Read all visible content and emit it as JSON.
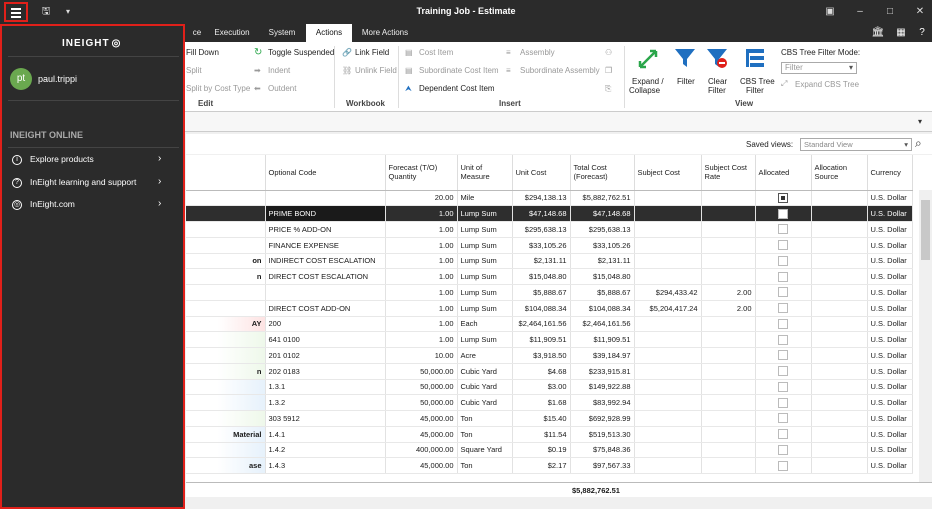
{
  "window": {
    "title": "Training Job - Estimate"
  },
  "tabs": [
    {
      "label": "ce"
    },
    {
      "label": "Execution"
    },
    {
      "label": "System"
    },
    {
      "label": "Actions"
    },
    {
      "label": "More Actions"
    }
  ],
  "ribbon": {
    "edit": {
      "fill_down": "Fill Down",
      "split": "Split",
      "split_cost_type": "Split by Cost Type",
      "toggle_suspended": "Toggle Suspended",
      "indent": "Indent",
      "outdent": "Outdent",
      "group": "Edit"
    },
    "workbook": {
      "link_field": "Link Field",
      "unlink_field": "Unlink Field",
      "group": "Workbook"
    },
    "insert": {
      "cost_item": "Cost Item",
      "subordinate_cost_item": "Subordinate Cost Item",
      "dependent_cost_item": "Dependent Cost Item",
      "assembly": "Assembly",
      "subordinate_assembly": "Subordinate Assembly",
      "group": "Insert"
    },
    "view": {
      "expand_collapse_1": "Expand /",
      "expand_collapse_2": "Collapse",
      "filter": "Filter",
      "clear_filter_1": "Clear",
      "clear_filter_2": "Filter",
      "cbs_tree_filter_1": "CBS Tree",
      "cbs_tree_filter_2": "Filter",
      "cbs_mode_label": "CBS Tree Filter Mode:",
      "filter_placeholder": "Filter",
      "expand_cbs_tree": "Expand CBS Tree",
      "group": "View"
    }
  },
  "saved_views": {
    "label": "Saved views:",
    "value": "Standard View"
  },
  "columns": [
    "Optional Code",
    "Forecast (T/O) Quantity",
    "Unit of Measure",
    "Unit Cost",
    "Total Cost (Forecast)",
    "Subject Cost",
    "Subject Cost Rate",
    "Allocated",
    "Allocation Source",
    "Currency"
  ],
  "rows": [
    {
      "lead": "",
      "code": "",
      "qty": "20.00",
      "uom": "Mile",
      "unit": "$294,138.13",
      "total": "$5,882,762.51",
      "subj": "",
      "rate": "",
      "alloc": true,
      "cur": "U.S. Dollar",
      "sel": false
    },
    {
      "lead": "",
      "code": "PRIME BOND",
      "qty": "1.00",
      "uom": "Lump Sum",
      "unit": "$47,148.68",
      "total": "$47,148.68",
      "subj": "",
      "rate": "",
      "alloc": false,
      "cur": "U.S. Dollar",
      "sel": true
    },
    {
      "lead": "",
      "code": "PRICE % ADD-ON",
      "qty": "1.00",
      "uom": "Lump Sum",
      "unit": "$295,638.13",
      "total": "$295,638.13",
      "subj": "",
      "rate": "",
      "alloc": false,
      "cur": "U.S. Dollar",
      "sel": false
    },
    {
      "lead": "",
      "code": "FINANCE EXPENSE",
      "qty": "1.00",
      "uom": "Lump Sum",
      "unit": "$33,105.26",
      "total": "$33,105.26",
      "subj": "",
      "rate": "",
      "alloc": false,
      "cur": "U.S. Dollar",
      "sel": false
    },
    {
      "lead": "on",
      "code": "INDIRECT COST ESCALATION",
      "qty": "1.00",
      "uom": "Lump Sum",
      "unit": "$2,131.11",
      "total": "$2,131.11",
      "subj": "",
      "rate": "",
      "alloc": false,
      "cur": "U.S. Dollar",
      "sel": false
    },
    {
      "lead": "n",
      "code": "DIRECT COST ESCALATION",
      "qty": "1.00",
      "uom": "Lump Sum",
      "unit": "$15,048.80",
      "total": "$15,048.80",
      "subj": "",
      "rate": "",
      "alloc": false,
      "cur": "U.S. Dollar",
      "sel": false
    },
    {
      "lead": "",
      "code": "",
      "qty": "1.00",
      "uom": "Lump Sum",
      "unit": "$5,888.67",
      "total": "$5,888.67",
      "subj": "$294,433.42",
      "rate": "2.00",
      "alloc": false,
      "cur": "U.S. Dollar",
      "sel": false
    },
    {
      "lead": "",
      "code": "DIRECT COST ADD-ON",
      "qty": "1.00",
      "uom": "Lump Sum",
      "unit": "$104,088.34",
      "total": "$104,088.34",
      "subj": "$5,204,417.24",
      "rate": "2.00",
      "alloc": false,
      "cur": "U.S. Dollar",
      "sel": false
    },
    {
      "lead": "AY",
      "code": "200",
      "qty": "1.00",
      "uom": "Each",
      "unit": "$2,464,161.56",
      "total": "$2,464,161.56",
      "subj": "",
      "rate": "",
      "alloc": false,
      "cur": "U.S. Dollar",
      "sel": false
    },
    {
      "lead": "",
      "code": "641 0100",
      "qty": "1.00",
      "uom": "Lump Sum",
      "unit": "$11,909.51",
      "total": "$11,909.51",
      "subj": "",
      "rate": "",
      "alloc": false,
      "cur": "U.S. Dollar",
      "sel": false
    },
    {
      "lead": "",
      "code": "201 0102",
      "qty": "10.00",
      "uom": "Acre",
      "unit": "$3,918.50",
      "total": "$39,184.97",
      "subj": "",
      "rate": "",
      "alloc": false,
      "cur": "U.S. Dollar",
      "sel": false
    },
    {
      "lead": "n",
      "code": "202 0183",
      "qty": "50,000.00",
      "uom": "Cubic Yard",
      "unit": "$4.68",
      "total": "$233,915.81",
      "subj": "",
      "rate": "",
      "alloc": false,
      "cur": "U.S. Dollar",
      "sel": false
    },
    {
      "lead": "",
      "code": "1.3.1",
      "qty": "50,000.00",
      "uom": "Cubic Yard",
      "unit": "$3.00",
      "total": "$149,922.88",
      "subj": "",
      "rate": "",
      "alloc": false,
      "cur": "U.S. Dollar",
      "sel": false
    },
    {
      "lead": "",
      "code": "1.3.2",
      "qty": "50,000.00",
      "uom": "Cubic Yard",
      "unit": "$1.68",
      "total": "$83,992.94",
      "subj": "",
      "rate": "",
      "alloc": false,
      "cur": "U.S. Dollar",
      "sel": false
    },
    {
      "lead": "",
      "code": "303 5912",
      "qty": "45,000.00",
      "uom": "Ton",
      "unit": "$15.40",
      "total": "$692,928.99",
      "subj": "",
      "rate": "",
      "alloc": false,
      "cur": "U.S. Dollar",
      "sel": false
    },
    {
      "lead": "Material",
      "code": "1.4.1",
      "qty": "45,000.00",
      "uom": "Ton",
      "unit": "$11.54",
      "total": "$519,513.30",
      "subj": "",
      "rate": "",
      "alloc": false,
      "cur": "U.S. Dollar",
      "sel": false
    },
    {
      "lead": "",
      "code": "1.4.2",
      "qty": "400,000.00",
      "uom": "Square Yard",
      "unit": "$0.19",
      "total": "$75,848.36",
      "subj": "",
      "rate": "",
      "alloc": false,
      "cur": "U.S. Dollar",
      "sel": false
    },
    {
      "lead": "ase",
      "code": "1.4.3",
      "qty": "45,000.00",
      "uom": "Ton",
      "unit": "$2.17",
      "total": "$97,567.33",
      "subj": "",
      "rate": "",
      "alloc": false,
      "cur": "U.S. Dollar",
      "sel": false
    }
  ],
  "footer_total": "$5,882,762.51",
  "drawer": {
    "logo": "INEIGHT",
    "avatar_initials": "pt",
    "user": "paul.trippi",
    "section": "INEIGHT ONLINE",
    "items": [
      {
        "label": "Explore products",
        "icon": "info-icon"
      },
      {
        "label": "InEight learning and support",
        "icon": "help-icon"
      },
      {
        "label": "InEight.com",
        "icon": "ineight-logo-icon"
      }
    ]
  },
  "colors": {
    "accent_red": "#e0201a",
    "dark": "#2b2b2b",
    "avatar": "#6aa84f",
    "blue_icon": "#1f6fc0",
    "green_icon": "#2aa64a"
  }
}
